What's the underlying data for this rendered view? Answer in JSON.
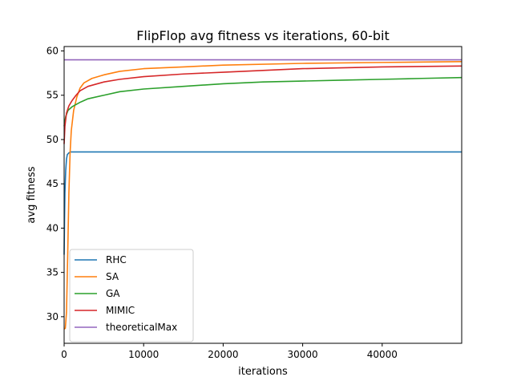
{
  "chart_data": {
    "type": "line",
    "title": "FlipFlop avg fitness vs iterations, 60-bit",
    "xlabel": "iterations",
    "ylabel": "avg fitness",
    "xlim": [
      0,
      50000
    ],
    "ylim": [
      27,
      60.5
    ],
    "xticks": [
      0,
      10000,
      20000,
      30000,
      40000
    ],
    "yticks": [
      30,
      35,
      40,
      45,
      50,
      55,
      60
    ],
    "grid": false,
    "legend_position": "lower-left",
    "series": [
      {
        "name": "RHC",
        "color": "#1f77b4",
        "points": [
          [
            0,
            37
          ],
          [
            50,
            41
          ],
          [
            100,
            44
          ],
          [
            200,
            46.5
          ],
          [
            300,
            47.8
          ],
          [
            400,
            48.3
          ],
          [
            600,
            48.5
          ],
          [
            800,
            48.6
          ],
          [
            1500,
            48.6
          ],
          [
            50000,
            48.6
          ]
        ]
      },
      {
        "name": "SA",
        "color": "#ff7f0e",
        "points": [
          [
            0,
            28.6
          ],
          [
            150,
            28.7
          ],
          [
            300,
            30.5
          ],
          [
            450,
            37
          ],
          [
            600,
            44
          ],
          [
            750,
            48.5
          ],
          [
            900,
            51
          ],
          [
            1200,
            53.3
          ],
          [
            1600,
            54.8
          ],
          [
            2000,
            55.8
          ],
          [
            2500,
            56.4
          ],
          [
            3500,
            56.9
          ],
          [
            5000,
            57.3
          ],
          [
            7000,
            57.7
          ],
          [
            10000,
            58.0
          ],
          [
            15000,
            58.2
          ],
          [
            20000,
            58.4
          ],
          [
            30000,
            58.6
          ],
          [
            40000,
            58.7
          ],
          [
            50000,
            58.8
          ]
        ]
      },
      {
        "name": "GA",
        "color": "#2ca02c",
        "points": [
          [
            0,
            51.5
          ],
          [
            200,
            52.6
          ],
          [
            500,
            53.3
          ],
          [
            1000,
            53.7
          ],
          [
            2000,
            54.2
          ],
          [
            3000,
            54.6
          ],
          [
            5000,
            55.0
          ],
          [
            7000,
            55.4
          ],
          [
            10000,
            55.7
          ],
          [
            15000,
            56.0
          ],
          [
            20000,
            56.3
          ],
          [
            25000,
            56.5
          ],
          [
            30000,
            56.6
          ],
          [
            35000,
            56.7
          ],
          [
            40000,
            56.8
          ],
          [
            45000,
            56.9
          ],
          [
            50000,
            57.0
          ]
        ]
      },
      {
        "name": "MIMIC",
        "color": "#d62728",
        "points": [
          [
            0,
            49.5
          ],
          [
            100,
            51.5
          ],
          [
            300,
            53.0
          ],
          [
            600,
            53.8
          ],
          [
            1000,
            54.4
          ],
          [
            1500,
            55.0
          ],
          [
            2000,
            55.5
          ],
          [
            3000,
            56.0
          ],
          [
            5000,
            56.5
          ],
          [
            7000,
            56.8
          ],
          [
            10000,
            57.1
          ],
          [
            15000,
            57.4
          ],
          [
            20000,
            57.6
          ],
          [
            25000,
            57.8
          ],
          [
            30000,
            58.0
          ],
          [
            40000,
            58.2
          ],
          [
            50000,
            58.3
          ]
        ]
      },
      {
        "name": "theoreticalMax",
        "color": "#9467bd",
        "points": [
          [
            0,
            59
          ],
          [
            50000,
            59
          ]
        ]
      }
    ]
  }
}
